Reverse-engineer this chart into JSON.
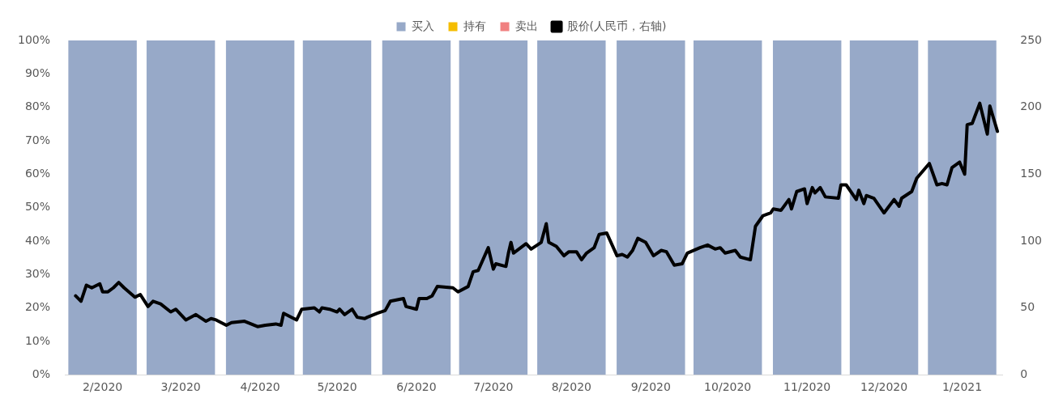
{
  "chart_data": {
    "type": "bar",
    "stacked": true,
    "x": [
      "2020-02-15",
      "2020-03-16",
      "2020-04-16",
      "2020-05-16",
      "2020-06-16",
      "2020-07-16",
      "2020-08-16",
      "2020-09-16",
      "2020-10-16",
      "2020-11-16",
      "2020-12-16",
      "2021-01-16"
    ],
    "xlim": [
      "2020-02-01",
      "2021-02-01"
    ],
    "xticks": [
      {
        "value": "2020-02-15",
        "label": "2/2020"
      },
      {
        "value": "2020-03-16",
        "label": "3/2020"
      },
      {
        "value": "2020-04-16",
        "label": "4/2020"
      },
      {
        "value": "2020-05-16",
        "label": "5/2020"
      },
      {
        "value": "2020-06-16",
        "label": "6/2020"
      },
      {
        "value": "2020-07-16",
        "label": "7/2020"
      },
      {
        "value": "2020-08-16",
        "label": "8/2020"
      },
      {
        "value": "2020-09-16",
        "label": "9/2020"
      },
      {
        "value": "2020-10-16",
        "label": "10/2020"
      },
      {
        "value": "2020-11-16",
        "label": "11/2020"
      },
      {
        "value": "2020-12-16",
        "label": "12/2020"
      },
      {
        "value": "2021-01-16",
        "label": "1/2021"
      }
    ],
    "series": [
      {
        "name": "买入",
        "color": "#97a9c8",
        "values": [
          100,
          100,
          100,
          100,
          100,
          100,
          100,
          100,
          100,
          100,
          100,
          100
        ]
      },
      {
        "name": "持有",
        "color": "#f5bd00",
        "values": [
          0,
          0,
          0,
          0,
          0,
          0,
          0,
          0,
          0,
          0,
          0,
          0
        ]
      },
      {
        "name": "卖出",
        "color": "#f08080",
        "values": [
          0,
          0,
          0,
          0,
          0,
          0,
          0,
          0,
          0,
          0,
          0,
          0
        ]
      },
      {
        "name": "股价(人民币，右轴)",
        "type": "line",
        "axis": "y2",
        "color": "#000000",
        "x": [
          "2020-02-05",
          "2020-02-07",
          "2020-02-09",
          "2020-02-11",
          "2020-02-14",
          "2020-02-15",
          "2020-02-17",
          "2020-02-19",
          "2020-02-21",
          "2020-02-23",
          "2020-02-27",
          "2020-02-29",
          "2020-03-03",
          "2020-03-05",
          "2020-03-08",
          "2020-03-12",
          "2020-03-14",
          "2020-03-18",
          "2020-03-22",
          "2020-03-26",
          "2020-03-28",
          "2020-03-30",
          "2020-04-03",
          "2020-04-05",
          "2020-04-10",
          "2020-04-15",
          "2020-04-18",
          "2020-04-22",
          "2020-04-24",
          "2020-04-25",
          "2020-04-30",
          "2020-05-02",
          "2020-05-07",
          "2020-05-09",
          "2020-05-10",
          "2020-05-13",
          "2020-05-16",
          "2020-05-17",
          "2020-05-19",
          "2020-05-22",
          "2020-05-24",
          "2020-05-27",
          "2020-05-28",
          "2020-06-01",
          "2020-06-04",
          "2020-06-06",
          "2020-06-11",
          "2020-06-12",
          "2020-06-16",
          "2020-06-17",
          "2020-06-20",
          "2020-06-22",
          "2020-06-24",
          "2020-06-30",
          "2020-07-02",
          "2020-07-06",
          "2020-07-08",
          "2020-07-10",
          "2020-07-14",
          "2020-07-16",
          "2020-07-17",
          "2020-07-21",
          "2020-07-22",
          "2020-07-23",
          "2020-07-24",
          "2020-07-29",
          "2020-07-31",
          "2020-08-04",
          "2020-08-06",
          "2020-08-07",
          "2020-08-10",
          "2020-08-13",
          "2020-08-15",
          "2020-08-18",
          "2020-08-20",
          "2020-08-22",
          "2020-08-25",
          "2020-08-27",
          "2020-08-30",
          "2020-09-03",
          "2020-09-05",
          "2020-09-07",
          "2020-09-09",
          "2020-09-11",
          "2020-09-14",
          "2020-09-17",
          "2020-09-20",
          "2020-09-22",
          "2020-09-25",
          "2020-09-28",
          "2020-09-30",
          "2020-10-05",
          "2020-10-08",
          "2020-10-11",
          "2020-10-13",
          "2020-10-15",
          "2020-10-19",
          "2020-10-21",
          "2020-10-25",
          "2020-10-27",
          "2020-10-30",
          "2020-11-02",
          "2020-11-03",
          "2020-11-06",
          "2020-11-09",
          "2020-11-10",
          "2020-11-12",
          "2020-11-15",
          "2020-11-16",
          "2020-11-18",
          "2020-11-19",
          "2020-11-21",
          "2020-11-23",
          "2020-11-28",
          "2020-11-29",
          "2020-12-01",
          "2020-12-05",
          "2020-12-06",
          "2020-12-08",
          "2020-12-09",
          "2020-12-12",
          "2020-12-16",
          "2020-12-20",
          "2020-12-22",
          "2020-12-23",
          "2020-12-27",
          "2020-12-29",
          "2021-01-03",
          "2021-01-06",
          "2021-01-08",
          "2021-01-10",
          "2021-01-12",
          "2021-01-15",
          "2021-01-17",
          "2021-01-18",
          "2021-01-20",
          "2021-01-23",
          "2021-01-26",
          "2021-01-27",
          "2021-01-30"
        ],
        "values": [
          59,
          55,
          67,
          65,
          68,
          62,
          62,
          65,
          69,
          65,
          58,
          60,
          51,
          55,
          53,
          47,
          49,
          41,
          45,
          40,
          42,
          41,
          37,
          39,
          40,
          36,
          37,
          38,
          37,
          46,
          41,
          49,
          50,
          47,
          50,
          49,
          47,
          49,
          45,
          49,
          43,
          42,
          43,
          46,
          48,
          55,
          57,
          51,
          49,
          57,
          57,
          59,
          66,
          65,
          62,
          66,
          77,
          78,
          95,
          79,
          83,
          81,
          91,
          99,
          91,
          98,
          94,
          99,
          113,
          99,
          96,
          89,
          92,
          92,
          86,
          91,
          95,
          105,
          106,
          89,
          90,
          88,
          93,
          102,
          99,
          89,
          93,
          92,
          82,
          83,
          91,
          95,
          97,
          94,
          95,
          91,
          93,
          88,
          86,
          111,
          119,
          121,
          124,
          123,
          131,
          124,
          137,
          139,
          128,
          140,
          136,
          140,
          133,
          132,
          142,
          142,
          131,
          138,
          128,
          134,
          132,
          121,
          131,
          126,
          132,
          137,
          147,
          158,
          142,
          143,
          142,
          155,
          159,
          150,
          187,
          188,
          203,
          180,
          201,
          182
        ]
      }
    ],
    "ylim": [
      0,
      100
    ],
    "yticks": [
      {
        "value": 0,
        "label": "0%"
      },
      {
        "value": 10,
        "label": "10%"
      },
      {
        "value": 20,
        "label": "20%"
      },
      {
        "value": 30,
        "label": "30%"
      },
      {
        "value": 40,
        "label": "40%"
      },
      {
        "value": 50,
        "label": "50%"
      },
      {
        "value": 60,
        "label": "60%"
      },
      {
        "value": 70,
        "label": "70%"
      },
      {
        "value": 80,
        "label": "80%"
      },
      {
        "value": 90,
        "label": "90%"
      },
      {
        "value": 100,
        "label": "100%"
      }
    ],
    "y2lim": [
      0,
      250
    ],
    "y2ticks": [
      0,
      50,
      100,
      150,
      200,
      250
    ],
    "grid": false,
    "legend": "top",
    "marker": "none",
    "line_style": "solid"
  }
}
